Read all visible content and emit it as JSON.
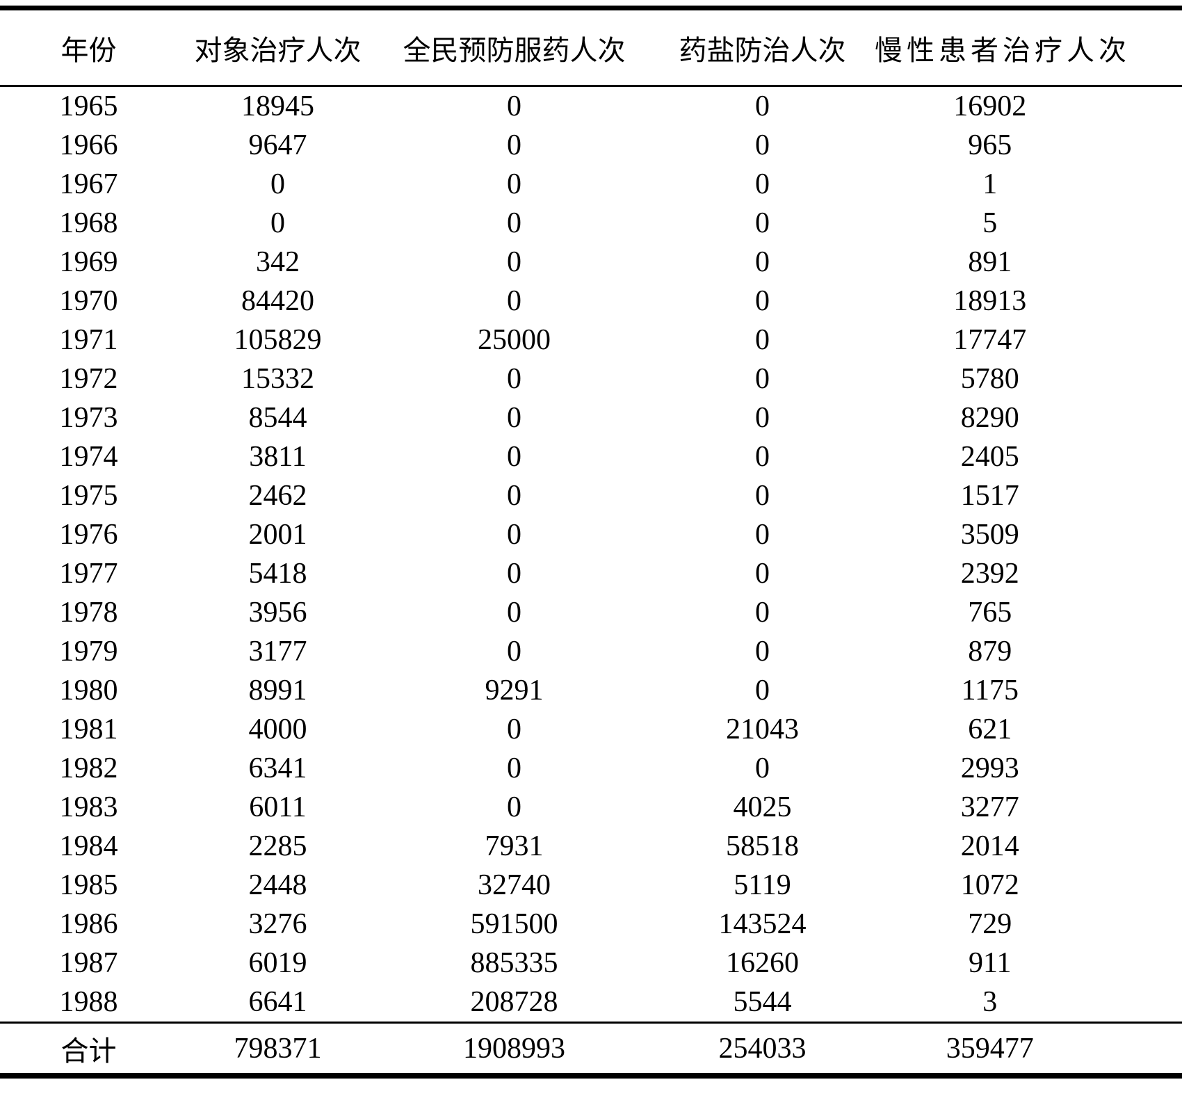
{
  "table": {
    "columns": [
      "年份",
      "对象治疗人次",
      "全民预防服药人次",
      "药盐防治人次",
      "慢性患者治疗人次"
    ],
    "rows": [
      [
        "1965",
        "18945",
        "0",
        "0",
        "16902"
      ],
      [
        "1966",
        "9647",
        "0",
        "0",
        "965"
      ],
      [
        "1967",
        "0",
        "0",
        "0",
        "1"
      ],
      [
        "1968",
        "0",
        "0",
        "0",
        "5"
      ],
      [
        "1969",
        "342",
        "0",
        "0",
        "891"
      ],
      [
        "1970",
        "84420",
        "0",
        "0",
        "18913"
      ],
      [
        "1971",
        "105829",
        "25000",
        "0",
        "17747"
      ],
      [
        "1972",
        "15332",
        "0",
        "0",
        "5780"
      ],
      [
        "1973",
        "8544",
        "0",
        "0",
        "8290"
      ],
      [
        "1974",
        "3811",
        "0",
        "0",
        "2405"
      ],
      [
        "1975",
        "2462",
        "0",
        "0",
        "1517"
      ],
      [
        "1976",
        "2001",
        "0",
        "0",
        "3509"
      ],
      [
        "1977",
        "5418",
        "0",
        "0",
        "2392"
      ],
      [
        "1978",
        "3956",
        "0",
        "0",
        "765"
      ],
      [
        "1979",
        "3177",
        "0",
        "0",
        "879"
      ],
      [
        "1980",
        "8991",
        "9291",
        "0",
        "1175"
      ],
      [
        "1981",
        "4000",
        "0",
        "21043",
        "621"
      ],
      [
        "1982",
        "6341",
        "0",
        "0",
        "2993"
      ],
      [
        "1983",
        "6011",
        "0",
        "4025",
        "3277"
      ],
      [
        "1984",
        "2285",
        "7931",
        "58518",
        "2014"
      ],
      [
        "1985",
        "2448",
        "32740",
        "5119",
        "1072"
      ],
      [
        "1986",
        "3276",
        "591500",
        "143524",
        "729"
      ],
      [
        "1987",
        "6019",
        "885335",
        "16260",
        "911"
      ],
      [
        "1988",
        "6641",
        "208728",
        "5544",
        "3"
      ]
    ],
    "total_label": "合计",
    "totals": [
      "798371",
      "1908993",
      "254033",
      "359477"
    ]
  }
}
